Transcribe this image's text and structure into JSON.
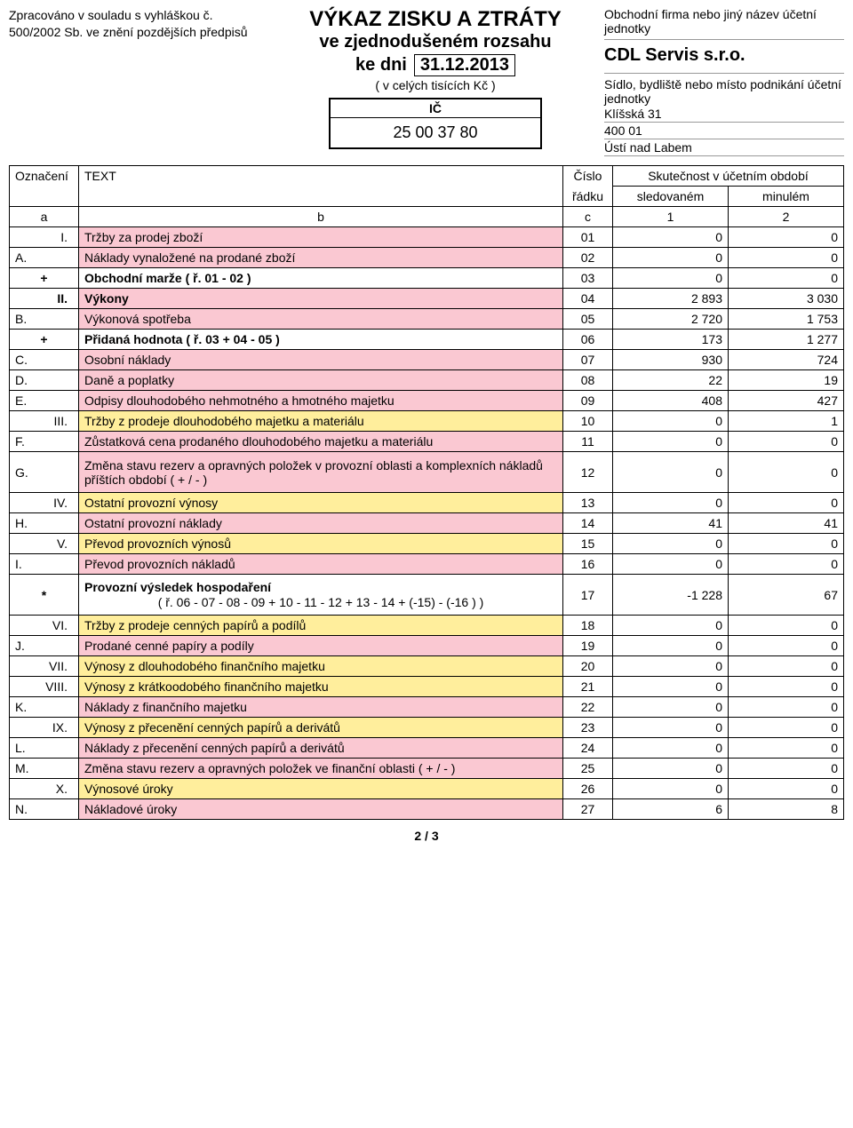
{
  "colors": {
    "pink": "#fac8d2",
    "yellow": "#ffee9c",
    "white": "#ffffff",
    "black": "#000000"
  },
  "header": {
    "regulation_text": "Zpracováno v souladu s vyhláškou č. 500/2002 Sb. ve znění pozdějších předpisů",
    "title_line1": "VÝKAZ ZISKU A ZTRÁTY",
    "title_line2": "ve zjednodušeném rozsahu",
    "date_prefix": "ke dni",
    "date_value": "31.12.2013",
    "units": "( v celých tisících Kč )",
    "ic_label": "IČ",
    "ic_value": "25 00 37 80",
    "firm_label": "Obchodní firma nebo jiný název účetní jednotky",
    "company_name": "CDL Servis s.r.o.",
    "address_label": "Sídlo, bydliště nebo místo podnikání účetní jednotky",
    "address_line1": "Klíšská 31",
    "address_line2": "400 01",
    "address_line3": "Ústí nad Labem"
  },
  "table": {
    "head": {
      "mark": "Označení",
      "text": "TEXT",
      "rownum_l1": "Číslo",
      "rownum_l2": "řádku",
      "period_header": "Skutečnost v účetním období",
      "current": "sledovaném",
      "previous": "minulém",
      "a": "a",
      "b": "b",
      "c": "c",
      "one": "1",
      "two": "2"
    },
    "rows": [
      {
        "mark": "I.",
        "mark_align": "right",
        "text": "Tržby za prodej zboží",
        "num": "01",
        "v1": "0",
        "v2": "0",
        "color": "pink"
      },
      {
        "mark": "A.",
        "mark_align": "left",
        "text": "Náklady vynaložené na prodané zboží",
        "num": "02",
        "v1": "0",
        "v2": "0",
        "color": "pink"
      },
      {
        "mark": "+",
        "mark_align": "center",
        "text": "Obchodní marže  ( ř. 01 - 02 )",
        "num": "03",
        "v1": "0",
        "v2": "0",
        "color": "white",
        "bold": true
      },
      {
        "mark": "II.",
        "mark_align": "right",
        "text": "Výkony",
        "num": "04",
        "v1": "2 893",
        "v2": "3 030",
        "color": "pink",
        "bold": true
      },
      {
        "mark": "B.",
        "mark_align": "left",
        "text": "Výkonová spotřeba",
        "num": "05",
        "v1": "2 720",
        "v2": "1 753",
        "color": "pink"
      },
      {
        "mark": "+",
        "mark_align": "center",
        "text": "Přidaná hodnota  ( ř. 03 + 04 - 05 )",
        "num": "06",
        "v1": "173",
        "v2": "1 277",
        "color": "white",
        "bold": true
      },
      {
        "mark": "C.",
        "mark_align": "left",
        "text": "Osobní náklady",
        "num": "07",
        "v1": "930",
        "v2": "724",
        "color": "pink"
      },
      {
        "mark": "D.",
        "mark_align": "left",
        "text": "Daně a poplatky",
        "num": "08",
        "v1": "22",
        "v2": "19",
        "color": "pink"
      },
      {
        "mark": "E.",
        "mark_align": "left",
        "text": "Odpisy dlouhodobého nehmotného a hmotného majetku",
        "num": "09",
        "v1": "408",
        "v2": "427",
        "color": "pink"
      },
      {
        "mark": "III.",
        "mark_align": "right",
        "text": "Tržby z prodeje dlouhodobého majetku a materiálu",
        "num": "10",
        "v1": "0",
        "v2": "1",
        "color": "yellow"
      },
      {
        "mark": "F.",
        "mark_align": "left",
        "text": "Zůstatková cena prodaného dlouhodobého majetku a materiálu",
        "num": "11",
        "v1": "0",
        "v2": "0",
        "color": "pink"
      },
      {
        "mark": "G.",
        "mark_align": "left",
        "text": "Změna stavu rezerv a opravných položek v provozní oblasti a komplexních nákladů příštích období ( + / - )",
        "num": "12",
        "v1": "0",
        "v2": "0",
        "color": "pink",
        "tall": true
      },
      {
        "mark": "IV.",
        "mark_align": "right",
        "text": "Ostatní provozní výnosy",
        "num": "13",
        "v1": "0",
        "v2": "0",
        "color": "yellow"
      },
      {
        "mark": "H.",
        "mark_align": "left",
        "text": "Ostatní provozní náklady",
        "num": "14",
        "v1": "41",
        "v2": "41",
        "color": "pink"
      },
      {
        "mark": "V.",
        "mark_align": "right",
        "text": "Převod provozních výnosů",
        "num": "15",
        "v1": "0",
        "v2": "0",
        "color": "yellow"
      },
      {
        "mark": "I.",
        "mark_align": "left",
        "text": "Převod provozních nákladů",
        "num": "16",
        "v1": "0",
        "v2": "0",
        "color": "pink"
      },
      {
        "mark": "*",
        "mark_align": "center",
        "text": "Provozní výsledek hospodaření",
        "text2": "( ř. 06 - 07 - 08 - 09 + 10 - 11 - 12 + 13 - 14 + (-15) - (-16 ) )",
        "num": "17",
        "v1": "-1 228",
        "v2": "67",
        "color": "white",
        "bold": true,
        "tall": true
      },
      {
        "mark": "VI.",
        "mark_align": "right",
        "text": "Tržby z prodeje cenných papírů a podílů",
        "num": "18",
        "v1": "0",
        "v2": "0",
        "color": "yellow"
      },
      {
        "mark": "J.",
        "mark_align": "left",
        "text": "Prodané cenné papíry a podíly",
        "num": "19",
        "v1": "0",
        "v2": "0",
        "color": "pink"
      },
      {
        "mark": "VII.",
        "mark_align": "right",
        "text": "Výnosy z dlouhodobého finančního majetku",
        "num": "20",
        "v1": "0",
        "v2": "0",
        "color": "yellow"
      },
      {
        "mark": "VIII.",
        "mark_align": "right",
        "text": "Výnosy z krátkoodobého finančního majetku",
        "num": "21",
        "v1": "0",
        "v2": "0",
        "color": "yellow"
      },
      {
        "mark": "K.",
        "mark_align": "left",
        "text": "Náklady z finančního majetku",
        "num": "22",
        "v1": "0",
        "v2": "0",
        "color": "pink"
      },
      {
        "mark": "IX.",
        "mark_align": "right",
        "text": "Výnosy z přecenění cenných papírů a derivátů",
        "num": "23",
        "v1": "0",
        "v2": "0",
        "color": "yellow"
      },
      {
        "mark": "L.",
        "mark_align": "left",
        "text": "Náklady z přecenění cenných papírů a derivátů",
        "num": "24",
        "v1": "0",
        "v2": "0",
        "color": "pink"
      },
      {
        "mark": "M.",
        "mark_align": "left",
        "text": "Změna stavu rezerv a opravných položek ve finanční oblasti ( + / - )",
        "num": "25",
        "v1": "0",
        "v2": "0",
        "color": "pink"
      },
      {
        "mark": "X.",
        "mark_align": "right",
        "text": "Výnosové úroky",
        "num": "26",
        "v1": "0",
        "v2": "0",
        "color": "yellow"
      },
      {
        "mark": "N.",
        "mark_align": "left",
        "text": "Nákladové úroky",
        "num": "27",
        "v1": "6",
        "v2": "8",
        "color": "pink"
      }
    ]
  },
  "page_number": "2 / 3"
}
